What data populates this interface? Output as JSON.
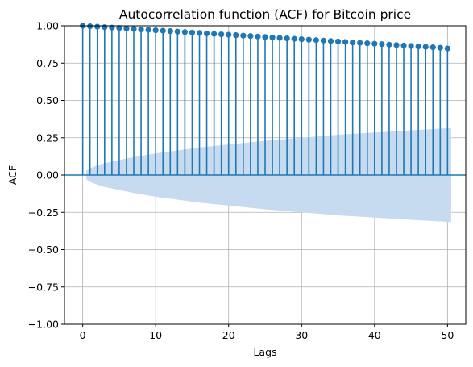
{
  "chart_data": {
    "type": "stem",
    "title": "Autocorrelation function (ACF) for Bitcoin price",
    "xlabel": "Lags",
    "ylabel": "ACF",
    "xlim": [
      -2.5,
      52.5
    ],
    "ylim": [
      -1.0,
      1.0
    ],
    "x_ticks": [
      0,
      10,
      20,
      30,
      40,
      50
    ],
    "x_tick_labels": [
      "0",
      "10",
      "20",
      "30",
      "40",
      "50"
    ],
    "y_ticks": [
      -1.0,
      -0.75,
      -0.5,
      -0.25,
      0.0,
      0.25,
      0.5,
      0.75,
      1.0
    ],
    "y_tick_labels": [
      "−1.00",
      "−0.75",
      "−0.50",
      "−0.25",
      "0.00",
      "0.25",
      "0.50",
      "0.75",
      "1.00"
    ],
    "grid": true,
    "colors": {
      "stem": "#1f77b4",
      "band": "#c6dbef",
      "grid": "#b0b0b0",
      "axis": "#000000"
    },
    "series": [
      {
        "lags": [
          0,
          1,
          2,
          3,
          4,
          5,
          6,
          7,
          8,
          9,
          10,
          11,
          12,
          13,
          14,
          15,
          16,
          17,
          18,
          19,
          20,
          21,
          22,
          23,
          24,
          25,
          26,
          27,
          28,
          29,
          30,
          31,
          32,
          33,
          34,
          35,
          36,
          37,
          38,
          39,
          40,
          41,
          42,
          43,
          44,
          45,
          46,
          47,
          48,
          49,
          50
        ],
        "values": [
          1.0,
          0.997,
          0.994,
          0.991,
          0.988,
          0.985,
          0.982,
          0.979,
          0.976,
          0.973,
          0.97,
          0.967,
          0.964,
          0.961,
          0.958,
          0.955,
          0.952,
          0.949,
          0.946,
          0.943,
          0.94,
          0.937,
          0.934,
          0.931,
          0.928,
          0.925,
          0.922,
          0.919,
          0.916,
          0.913,
          0.91,
          0.907,
          0.904,
          0.901,
          0.898,
          0.895,
          0.892,
          0.889,
          0.886,
          0.883,
          0.88,
          0.877,
          0.874,
          0.871,
          0.868,
          0.865,
          0.862,
          0.859,
          0.856,
          0.853,
          0.848
        ]
      }
    ],
    "confidence_band": {
      "lags": [
        0.5,
        1,
        2,
        3,
        5,
        7,
        10,
        13,
        16,
        20,
        25,
        30,
        35,
        40,
        45,
        50.5
      ],
      "upper": [
        0.03,
        0.045,
        0.065,
        0.08,
        0.1,
        0.12,
        0.145,
        0.165,
        0.185,
        0.205,
        0.23,
        0.25,
        0.27,
        0.285,
        0.3,
        0.315
      ]
    }
  }
}
